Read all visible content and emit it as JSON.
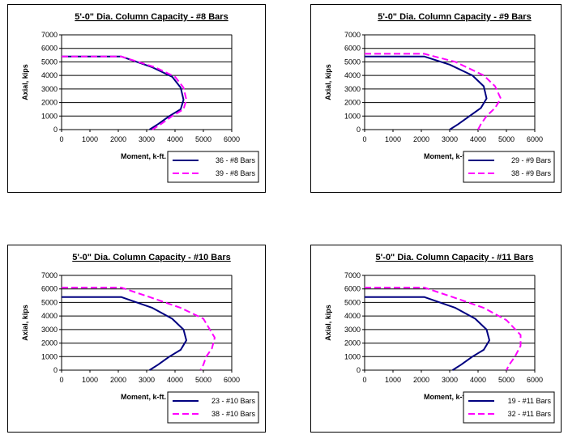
{
  "chart_data": [
    {
      "type": "line",
      "title": "5'-0\" Dia. Column Capacity - #8 Bars",
      "xlabel": "Moment, k-ft.",
      "ylabel": "Axial, kips",
      "xlim": [
        0,
        6000
      ],
      "ylim": [
        0,
        7000
      ],
      "xticks": [
        "0",
        "1000",
        "2000",
        "3000",
        "4000",
        "5000",
        "6000"
      ],
      "yticks": [
        "0",
        "1000",
        "2000",
        "3000",
        "4000",
        "5000",
        "6000",
        "7000"
      ],
      "grid": "horizontal",
      "legend": "bottom-right",
      "series": [
        {
          "name": "36 - #8 Bars",
          "color": "#000080",
          "dash": "solid",
          "x": [
            0,
            2100,
            3200,
            3900,
            4200,
            4300,
            4200,
            3800,
            3400,
            3100
          ],
          "y": [
            5400,
            5400,
            4600,
            3900,
            3100,
            2200,
            1500,
            1000,
            400,
            0
          ]
        },
        {
          "name": "39 - #8 Bars",
          "color": "#ff00ff",
          "dash": "dashed",
          "x": [
            0,
            2100,
            3300,
            4000,
            4300,
            4400,
            4300,
            3900,
            3500,
            3200
          ],
          "y": [
            5400,
            5400,
            4600,
            3900,
            3100,
            2200,
            1500,
            1000,
            400,
            0
          ]
        }
      ]
    },
    {
      "type": "line",
      "title": "5'-0\" Dia. Column Capacity - #9 Bars",
      "xlabel": "Moment, k-ft.",
      "ylabel": "Axial, kips",
      "xlim": [
        0,
        6000
      ],
      "ylim": [
        0,
        7000
      ],
      "xticks": [
        "0",
        "1000",
        "2000",
        "3000",
        "4000",
        "5000",
        "6000"
      ],
      "yticks": [
        "0",
        "1000",
        "2000",
        "3000",
        "4000",
        "5000",
        "6000",
        "7000"
      ],
      "grid": "horizontal",
      "legend": "bottom-right",
      "series": [
        {
          "name": "29 - #9 Bars",
          "color": "#000080",
          "dash": "solid",
          "x": [
            0,
            2100,
            3000,
            3800,
            4200,
            4300,
            4100,
            3700,
            3300,
            3000
          ],
          "y": [
            5400,
            5400,
            4800,
            4000,
            3200,
            2300,
            1600,
            1000,
            400,
            0
          ]
        },
        {
          "name": "38 - #9 Bars",
          "color": "#ff00ff",
          "dash": "dashed",
          "x": [
            0,
            2100,
            3200,
            4200,
            4600,
            4800,
            4600,
            4300,
            4100,
            4000
          ],
          "y": [
            5600,
            5600,
            5000,
            4000,
            3200,
            2300,
            1600,
            1000,
            400,
            0
          ]
        }
      ]
    },
    {
      "type": "line",
      "title": "5'-0\" Dia. Column Capacity - #10 Bars",
      "xlabel": "Moment, k-ft.",
      "ylabel": "Axial, kips",
      "xlim": [
        0,
        6000
      ],
      "ylim": [
        0,
        7000
      ],
      "xticks": [
        "0",
        "1000",
        "2000",
        "3000",
        "4000",
        "5000",
        "6000"
      ],
      "yticks": [
        "0",
        "1000",
        "2000",
        "3000",
        "4000",
        "5000",
        "6000",
        "7000"
      ],
      "grid": "horizontal",
      "legend": "bottom-right",
      "series": [
        {
          "name": "23 - #10 Bars",
          "color": "#000080",
          "dash": "solid",
          "x": [
            0,
            2100,
            3200,
            3900,
            4300,
            4400,
            4200,
            3800,
            3400,
            3100
          ],
          "y": [
            5400,
            5400,
            4600,
            3800,
            3000,
            2200,
            1500,
            1000,
            400,
            0
          ]
        },
        {
          "name": "38 - #10 Bars",
          "color": "#ff00ff",
          "dash": "dashed",
          "x": [
            0,
            2100,
            3100,
            4200,
            5000,
            5400,
            5300,
            5100,
            5000,
            4900
          ],
          "y": [
            6100,
            6100,
            5400,
            4600,
            3800,
            2400,
            1600,
            1000,
            400,
            0
          ]
        }
      ]
    },
    {
      "type": "line",
      "title": "5'-0\" Dia. Column Capacity - #11 Bars",
      "xlabel": "Moment, k-ft.",
      "ylabel": "Axial, kips",
      "xlim": [
        0,
        6000
      ],
      "ylim": [
        0,
        7000
      ],
      "xticks": [
        "0",
        "1000",
        "2000",
        "3000",
        "4000",
        "5000",
        "6000"
      ],
      "yticks": [
        "0",
        "1000",
        "2000",
        "3000",
        "4000",
        "5000",
        "6000",
        "7000"
      ],
      "grid": "horizontal",
      "legend": "bottom-right",
      "series": [
        {
          "name": "19 - #11 Bars",
          "color": "#000080",
          "dash": "solid",
          "x": [
            0,
            2100,
            3200,
            3900,
            4300,
            4400,
            4200,
            3800,
            3400,
            3100
          ],
          "y": [
            5400,
            5400,
            4600,
            3800,
            3000,
            2200,
            1500,
            1000,
            400,
            0
          ]
        },
        {
          "name": "32 - #11 Bars",
          "color": "#ff00ff",
          "dash": "dashed",
          "x": [
            0,
            2100,
            3100,
            4200,
            5000,
            5500,
            5500,
            5300,
            5100,
            5000
          ],
          "y": [
            6100,
            6100,
            5400,
            4600,
            3700,
            2600,
            1800,
            1000,
            400,
            0
          ]
        }
      ]
    }
  ]
}
